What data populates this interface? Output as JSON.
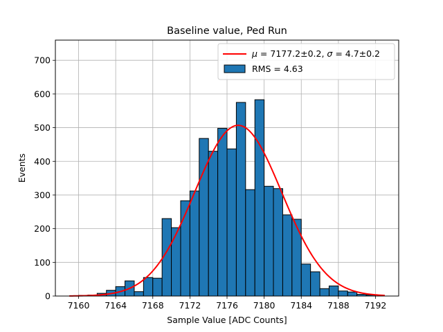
{
  "chart_data": {
    "type": "bar",
    "title": "Baseline value, Ped Run",
    "xlabel": "Sample Value [ADC Counts]",
    "ylabel": "Events",
    "xlim": [
      7157.5,
      7194.5
    ],
    "ylim": [
      0,
      760
    ],
    "grid": true,
    "x_ticks": [
      7160,
      7164,
      7168,
      7172,
      7176,
      7180,
      7184,
      7188,
      7192
    ],
    "y_ticks": [
      0,
      100,
      200,
      300,
      400,
      500,
      600,
      700
    ],
    "histogram": {
      "name": "RMS = 4.63",
      "bin_width": 1,
      "bin_edges_start": 7160,
      "values": [
        2,
        3,
        8,
        17,
        28,
        45,
        13,
        55,
        53,
        230,
        203,
        283,
        312,
        468,
        430,
        498,
        437,
        575,
        316,
        583,
        326,
        319,
        241,
        228,
        95,
        72,
        22,
        30,
        15,
        12,
        5,
        3
      ],
      "color": "#1f77b4"
    },
    "fit": {
      "name_parts": [
        "μ",
        " = 7177.2±0.2, ",
        "σ",
        " = 4.7±0.2"
      ],
      "mu": 7177.2,
      "sigma": 4.7,
      "amplitude": 507,
      "x_range": [
        7159,
        7193
      ],
      "color": "#ff0000"
    },
    "legend_position": "top-right"
  }
}
